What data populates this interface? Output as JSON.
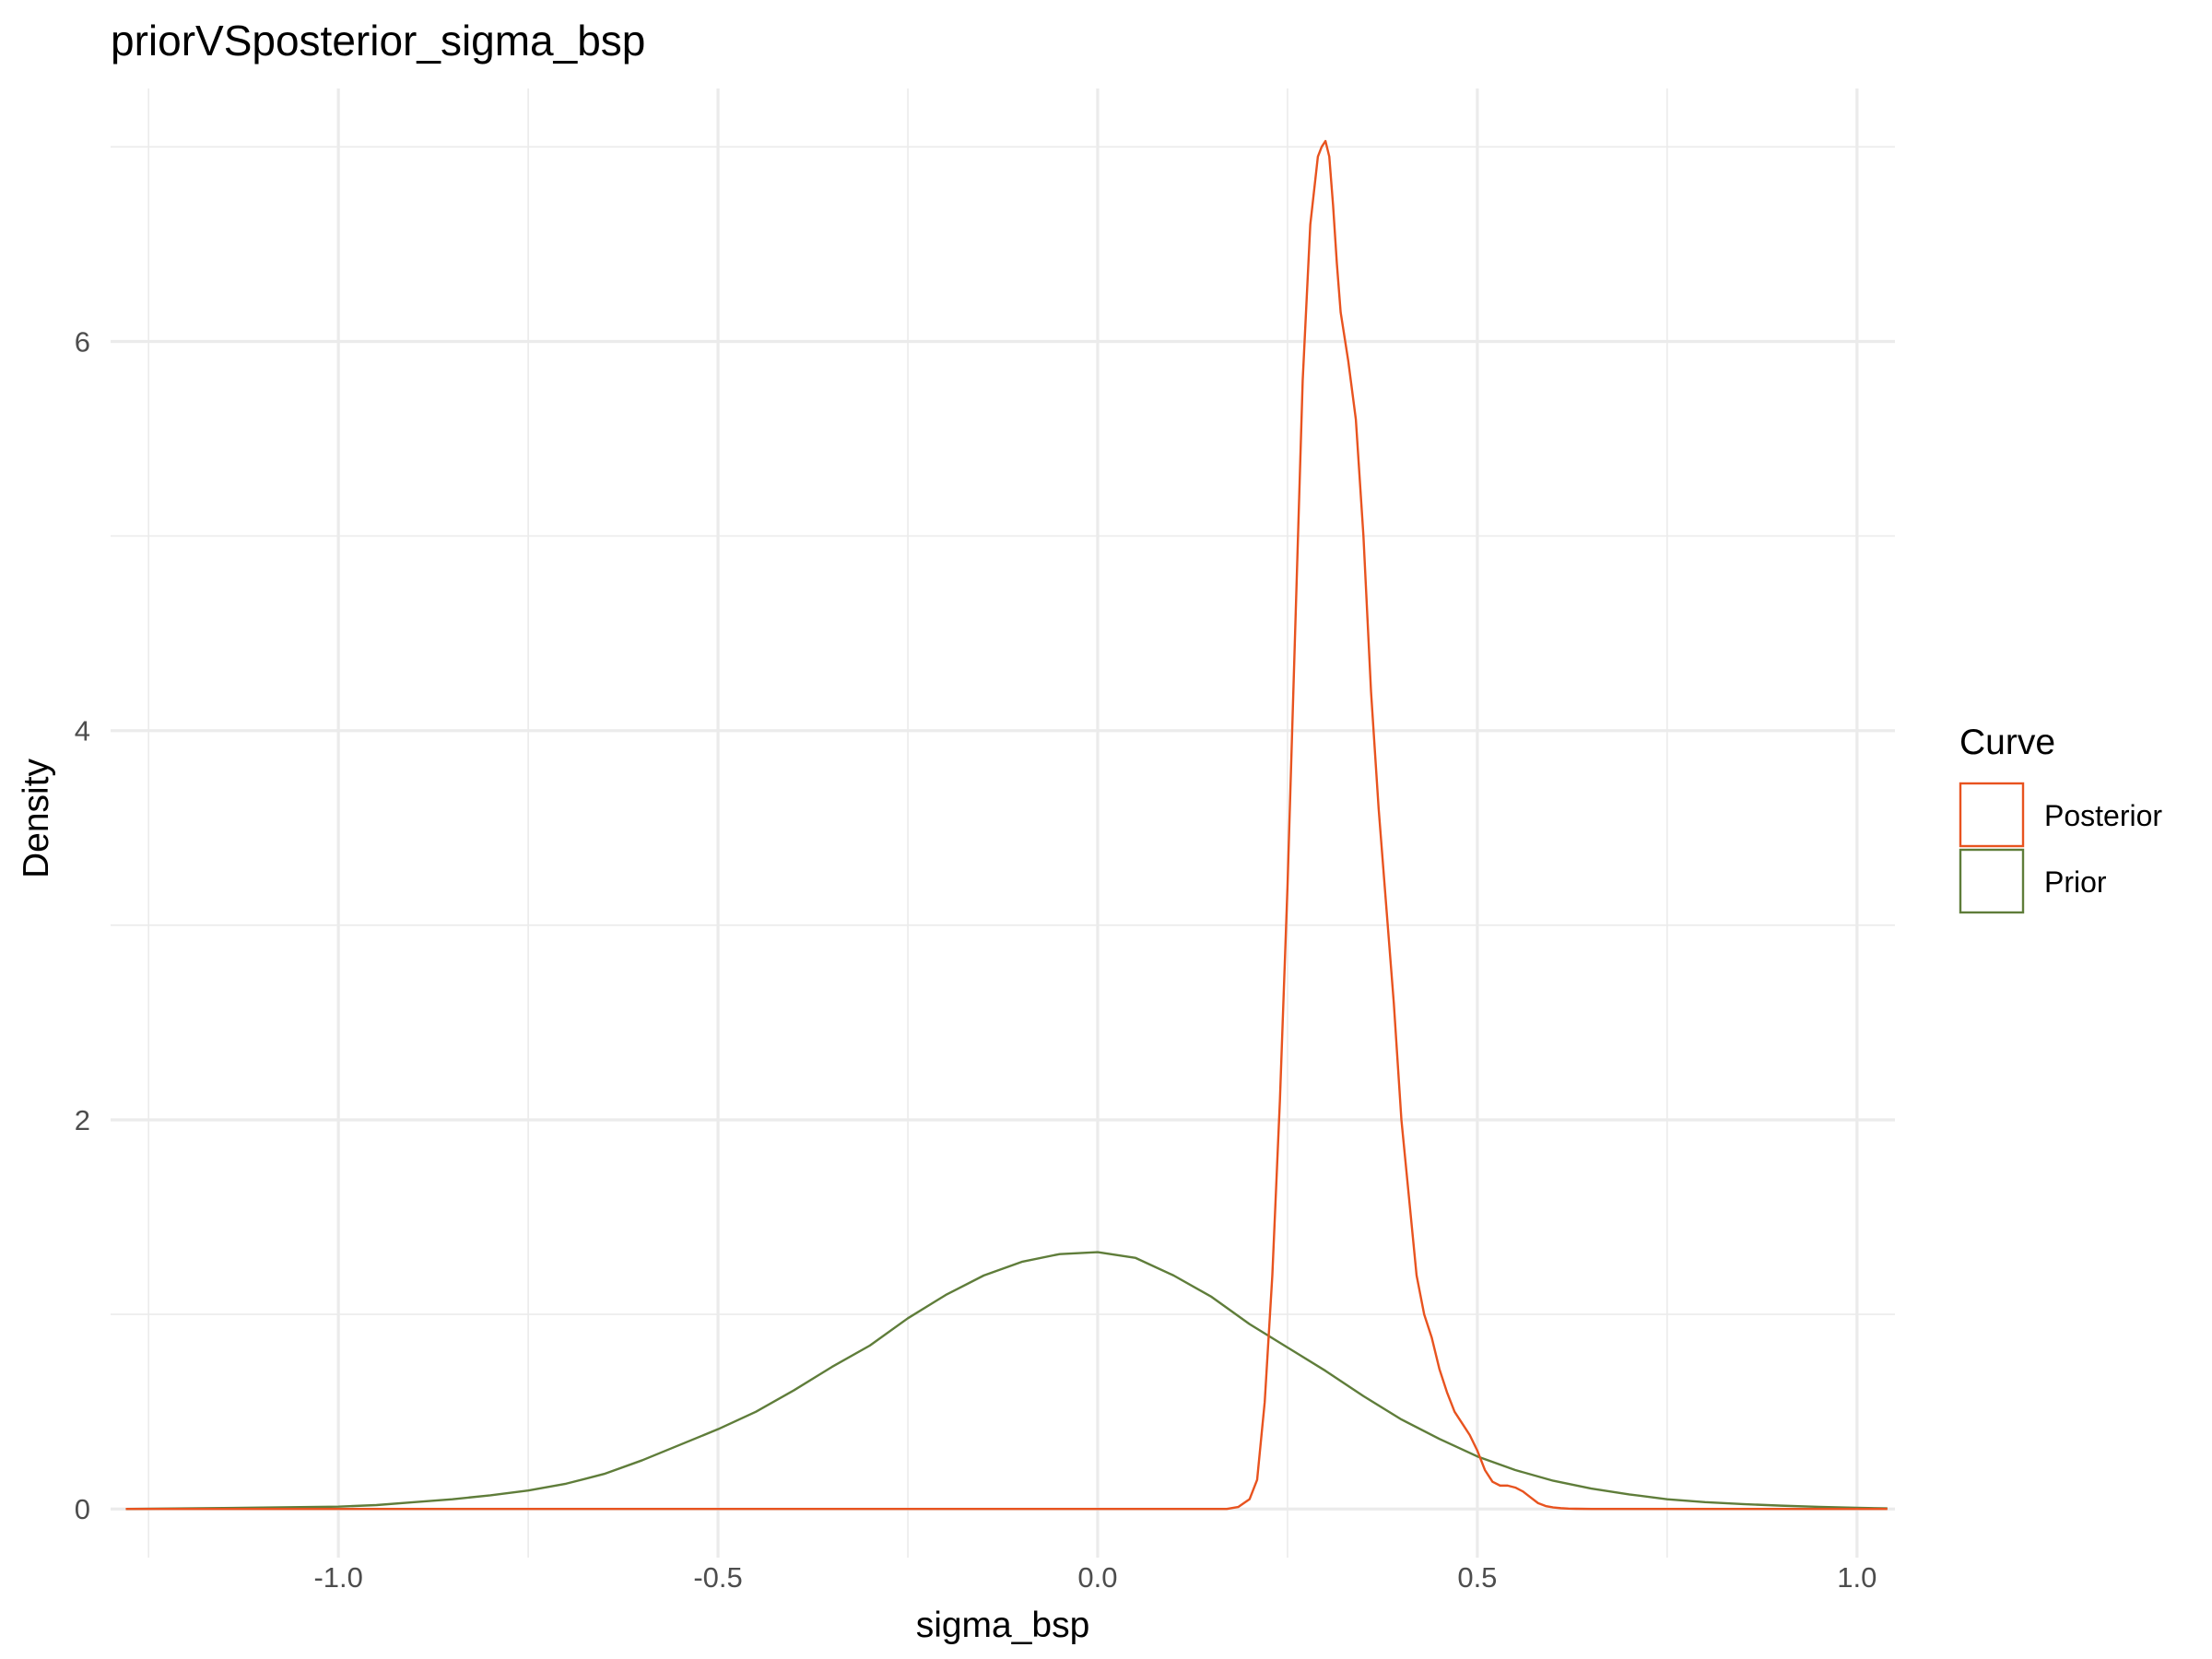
{
  "chart_data": {
    "type": "line",
    "title": "priorVSposterior_sigma_bsp",
    "xlabel": "sigma_bsp",
    "ylabel": "Density",
    "xlim": [
      -1.3,
      1.05
    ],
    "ylim": [
      -0.25,
      7.3
    ],
    "x_ticks": [
      -1.0,
      -0.5,
      0.0,
      0.5,
      1.0
    ],
    "x_tick_labels": [
      "-1.0",
      "-0.5",
      "0.0",
      "0.5",
      "1.0"
    ],
    "y_ticks": [
      0,
      2,
      4,
      6
    ],
    "y_tick_labels": [
      "0",
      "2",
      "4",
      "6"
    ],
    "grid": true,
    "legend": {
      "title": "Curve",
      "position": "right"
    },
    "series": [
      {
        "name": "Posterior",
        "color": "#e8531f",
        "x": [
          -1.28,
          0.0,
          0.17,
          0.185,
          0.2,
          0.21,
          0.22,
          0.23,
          0.24,
          0.25,
          0.26,
          0.27,
          0.28,
          0.29,
          0.295,
          0.3,
          0.305,
          0.31,
          0.315,
          0.32,
          0.33,
          0.34,
          0.35,
          0.36,
          0.37,
          0.38,
          0.39,
          0.4,
          0.41,
          0.42,
          0.43,
          0.44,
          0.45,
          0.46,
          0.47,
          0.48,
          0.49,
          0.5,
          0.51,
          0.52,
          0.53,
          0.54,
          0.55,
          0.56,
          0.57,
          0.58,
          0.59,
          0.6,
          0.61,
          0.62,
          0.63,
          0.65,
          0.7,
          1.04
        ],
        "y": [
          0.0,
          0.0,
          0.0,
          0.01,
          0.05,
          0.15,
          0.55,
          1.2,
          2.1,
          3.2,
          4.5,
          5.8,
          6.6,
          6.95,
          7.0,
          7.03,
          6.95,
          6.7,
          6.4,
          6.15,
          5.9,
          5.6,
          5.0,
          4.2,
          3.6,
          3.1,
          2.6,
          2.0,
          1.6,
          1.2,
          1.0,
          0.88,
          0.72,
          0.6,
          0.5,
          0.44,
          0.38,
          0.3,
          0.2,
          0.14,
          0.12,
          0.12,
          0.11,
          0.09,
          0.06,
          0.03,
          0.015,
          0.008,
          0.004,
          0.002,
          0.001,
          0.0,
          0.0,
          0.0
        ]
      },
      {
        "name": "Prior",
        "color": "#5f7d3a",
        "x": [
          -1.28,
          -1.2,
          -1.1,
          -1.0,
          -0.95,
          -0.9,
          -0.85,
          -0.8,
          -0.75,
          -0.7,
          -0.65,
          -0.6,
          -0.55,
          -0.5,
          -0.45,
          -0.4,
          -0.35,
          -0.3,
          -0.25,
          -0.2,
          -0.15,
          -0.1,
          -0.05,
          0.0,
          0.05,
          0.1,
          0.15,
          0.2,
          0.25,
          0.3,
          0.35,
          0.4,
          0.45,
          0.5,
          0.55,
          0.6,
          0.65,
          0.7,
          0.75,
          0.8,
          0.85,
          0.9,
          0.95,
          1.0,
          1.04
        ],
        "y": [
          0.0,
          0.003,
          0.007,
          0.012,
          0.02,
          0.035,
          0.05,
          0.07,
          0.095,
          0.13,
          0.18,
          0.25,
          0.33,
          0.41,
          0.5,
          0.61,
          0.73,
          0.84,
          0.98,
          1.1,
          1.2,
          1.27,
          1.31,
          1.32,
          1.29,
          1.2,
          1.09,
          0.95,
          0.83,
          0.71,
          0.58,
          0.46,
          0.36,
          0.27,
          0.2,
          0.145,
          0.105,
          0.075,
          0.05,
          0.035,
          0.025,
          0.017,
          0.011,
          0.006,
          0.003
        ]
      }
    ]
  }
}
